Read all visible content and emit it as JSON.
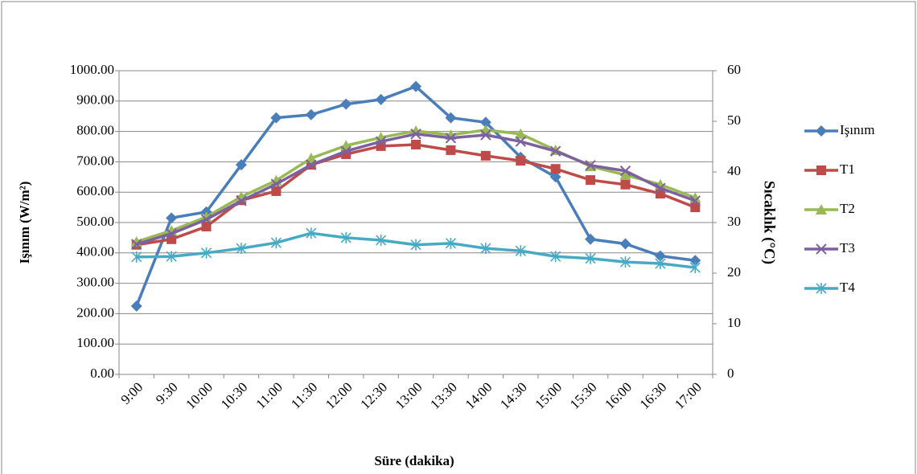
{
  "chart_data": {
    "type": "line",
    "categories": [
      "9:00",
      "9:30",
      "10:00",
      "10:30",
      "11:00",
      "11:30",
      "12:00",
      "12:30",
      "13:00",
      "13:30",
      "14:00",
      "14:30",
      "15:00",
      "15:30",
      "16:00",
      "16:30",
      "17:00"
    ],
    "series": [
      {
        "name": "Işınım",
        "color": "#4a7ebb",
        "marker": "diamond",
        "values": [
          225,
          515,
          535,
          690,
          845,
          855,
          890,
          905,
          948,
          845,
          830,
          715,
          650,
          445,
          430,
          390,
          375
        ]
      },
      {
        "name": "T1",
        "color": "#be4b48",
        "marker": "square",
        "axis": "y2",
        "values": [
          25.6,
          26.7,
          29.2,
          34.4,
          36.2,
          41.4,
          43.5,
          45.1,
          45.4,
          44.3,
          43.2,
          42.2,
          40.6,
          38.4,
          37.5,
          35.7,
          33.0
        ]
      },
      {
        "name": "T2",
        "color": "#98b954",
        "marker": "triangle",
        "axis": "y2",
        "values": [
          26.2,
          28.4,
          31.1,
          35.1,
          38.3,
          42.7,
          45.2,
          46.8,
          48.1,
          47.3,
          48.3,
          47.5,
          44.3,
          41.1,
          39.4,
          37.5,
          34.9
        ]
      },
      {
        "name": "T3",
        "color": "#7d60a0",
        "marker": "x",
        "axis": "y2",
        "values": [
          25.7,
          27.8,
          30.6,
          34.3,
          37.6,
          41.4,
          44.1,
          46.0,
          47.5,
          46.7,
          47.3,
          46.0,
          44.1,
          41.3,
          40.2,
          36.8,
          34.3
        ]
      },
      {
        "name": "T4",
        "color": "#46aac5",
        "marker": "star",
        "axis": "y2",
        "values": [
          23.2,
          23.3,
          24.0,
          24.9,
          26.0,
          27.9,
          27.0,
          26.5,
          25.6,
          25.9,
          24.9,
          24.4,
          23.3,
          22.9,
          22.2,
          21.9,
          21.1
        ]
      }
    ],
    "x_label": "Süre (dakika)",
    "y_label": "Işınım (W/m²)",
    "y2_label": "Sıcaklık (°C)",
    "ylim": [
      0,
      1000
    ],
    "yticks": [
      {
        "value": 0,
        "label": "0.00"
      },
      {
        "value": 100,
        "label": "100.00"
      },
      {
        "value": 200,
        "label": "200.00"
      },
      {
        "value": 300,
        "label": "300.00"
      },
      {
        "value": 400,
        "label": "400.00"
      },
      {
        "value": 500,
        "label": "500.00"
      },
      {
        "value": 600,
        "label": "600.00"
      },
      {
        "value": 700,
        "label": "700.00"
      },
      {
        "value": 800,
        "label": "800.00"
      },
      {
        "value": 900,
        "label": "900.00"
      },
      {
        "value": 1000,
        "label": "1000.00"
      }
    ],
    "y2lim": [
      0,
      60
    ],
    "y2ticks": [
      0,
      10,
      20,
      30,
      40,
      50,
      60
    ],
    "grid": true,
    "legend": "right"
  }
}
